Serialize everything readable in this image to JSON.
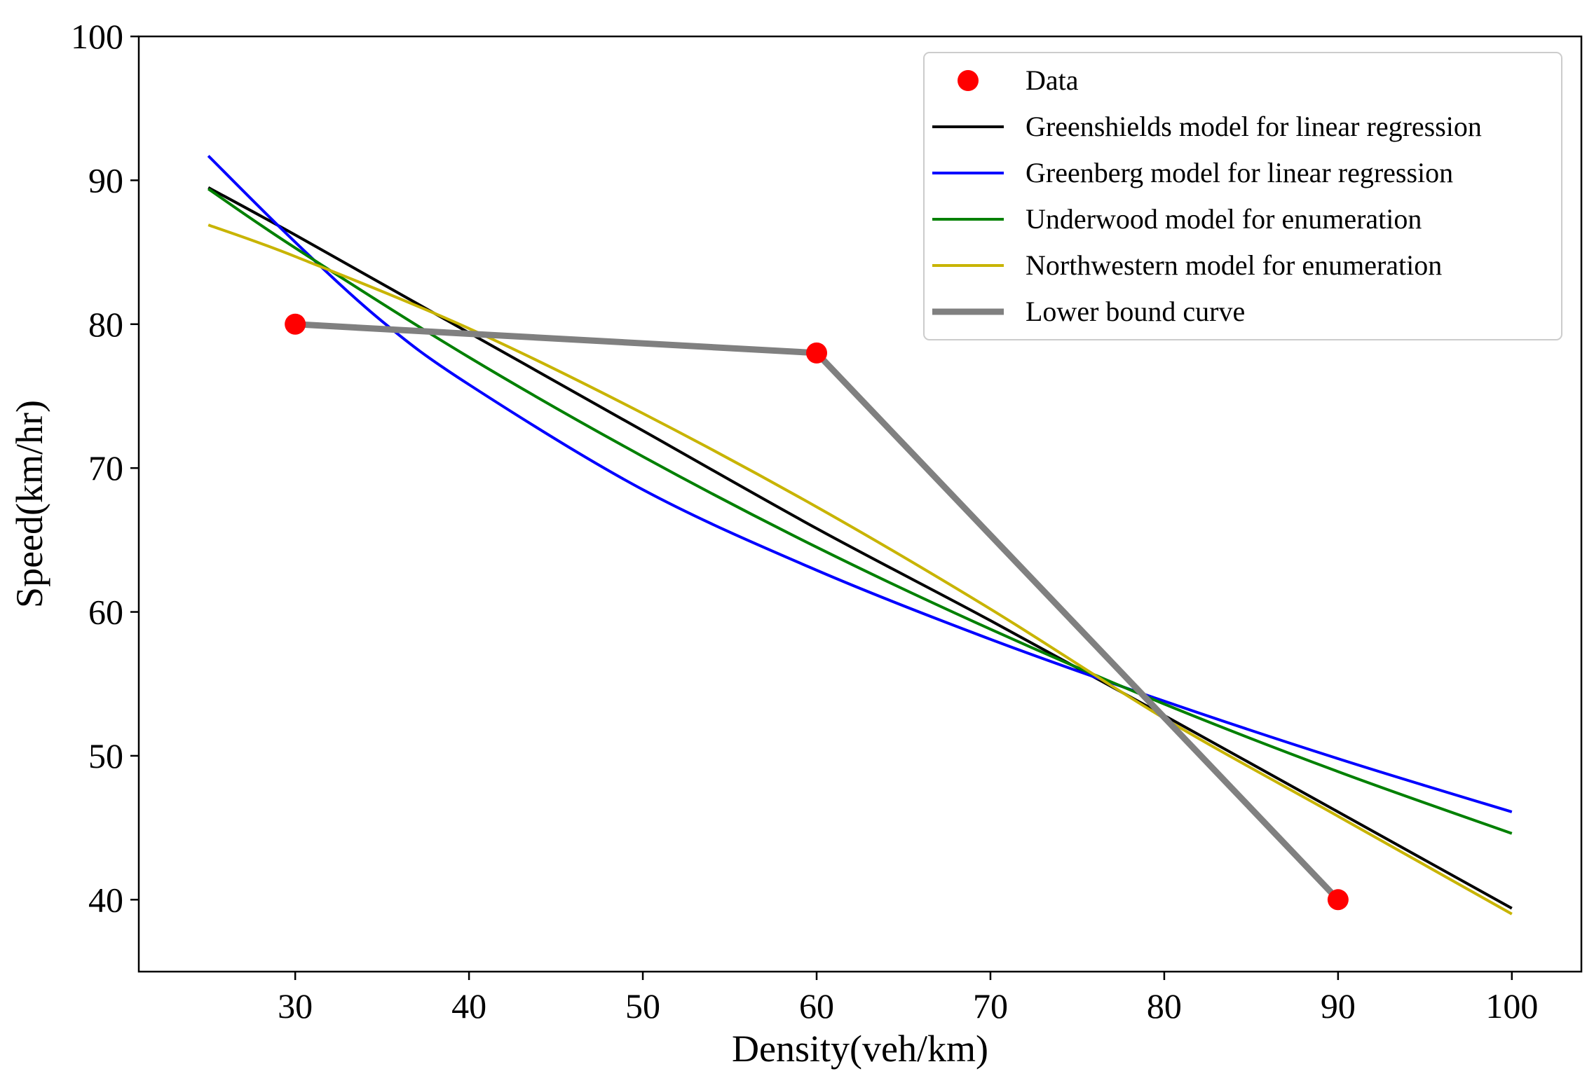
{
  "chart_data": {
    "type": "line",
    "title": "",
    "xlabel": "Density(veh/km)",
    "ylabel": "Speed(km/hr)",
    "xlim": [
      21,
      104
    ],
    "ylim": [
      35,
      100
    ],
    "xticks": [
      "30",
      "40",
      "50",
      "60",
      "70",
      "80",
      "90",
      "100"
    ],
    "yticks": [
      "40",
      "50",
      "60",
      "70",
      "80",
      "90",
      "100"
    ],
    "xtick_values": [
      30,
      40,
      50,
      60,
      70,
      80,
      90,
      100
    ],
    "ytick_values": [
      40,
      50,
      60,
      70,
      80,
      90,
      100
    ],
    "grid": false,
    "legend_position": "top-right",
    "scatter": {
      "name": "Data",
      "color": "#ff0000",
      "x": [
        30,
        60,
        90
      ],
      "y": [
        80,
        78,
        40
      ]
    },
    "series": [
      {
        "name": "Greenshields model for linear regression",
        "color": "#000000",
        "x": [
          25,
          30,
          40,
          50,
          60,
          70,
          80,
          90,
          100
        ],
        "y": [
          89.5,
          86.2,
          79.4,
          72.6,
          65.8,
          59.4,
          52.8,
          46.1,
          39.4
        ]
      },
      {
        "name": "Greenberg model for linear regression",
        "color": "#0000ff",
        "x": [
          25,
          30,
          35,
          40,
          50,
          60,
          70,
          80,
          90,
          100
        ],
        "y": [
          91.7,
          85.7,
          80.2,
          75.8,
          68.5,
          62.9,
          58.1,
          53.8,
          49.8,
          46.1
        ]
      },
      {
        "name": "Underwood model for enumeration",
        "color": "#008000",
        "x": [
          25,
          30,
          40,
          50,
          60,
          70,
          80,
          90,
          100
        ],
        "y": [
          89.4,
          85.3,
          77.7,
          70.8,
          64.5,
          58.8,
          53.6,
          48.9,
          44.6
        ]
      },
      {
        "name": "Northwestern model for enumeration",
        "color": "#c8b400",
        "x": [
          25,
          30,
          40,
          50,
          60,
          70,
          80,
          90,
          100
        ],
        "y": [
          86.9,
          84.7,
          79.7,
          73.8,
          67.3,
          60.2,
          52.6,
          45.8,
          39.0
        ]
      },
      {
        "name": "Lower bound curve",
        "color": "#808080",
        "x": [
          30,
          60,
          90
        ],
        "y": [
          80,
          78,
          40
        ]
      }
    ]
  }
}
